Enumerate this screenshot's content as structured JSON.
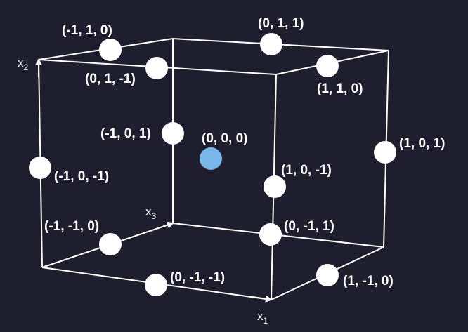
{
  "diagram": {
    "axes": {
      "x1": {
        "base": "x",
        "sub": "1"
      },
      "x2": {
        "base": "x",
        "sub": "2"
      },
      "x3": {
        "base": "x",
        "sub": "3"
      }
    },
    "points": [
      {
        "id": "m1-1-0",
        "label": "(-1, 1, 0)"
      },
      {
        "id": "0-1-1",
        "label": "(0, 1, 1)"
      },
      {
        "id": "0-1-m1",
        "label": "(0, 1, -1)"
      },
      {
        "id": "1-1-0",
        "label": "(1, 1, 0)"
      },
      {
        "id": "m1-0-1",
        "label": "(-1, 0, 1)"
      },
      {
        "id": "0-0-0",
        "label": "(0, 0, 0)"
      },
      {
        "id": "1-0-1",
        "label": "(1, 0, 1)"
      },
      {
        "id": "m1-0-m1",
        "label": "(-1, 0, -1)"
      },
      {
        "id": "1-0-m1",
        "label": "(1, 0, -1)"
      },
      {
        "id": "m1-m1-0",
        "label": "(-1, -1, 0)"
      },
      {
        "id": "0-m1-1",
        "label": "(0, -1, 1)"
      },
      {
        "id": "0-m1-m1",
        "label": "(0, -1, -1)"
      },
      {
        "id": "1-m1-0",
        "label": "(1, -1, 0)"
      }
    ],
    "colors": {
      "background": "#1e1e2e",
      "edges": "#ffffff",
      "nodes": "#ffffff",
      "center_node": "#7ab8ea"
    }
  }
}
